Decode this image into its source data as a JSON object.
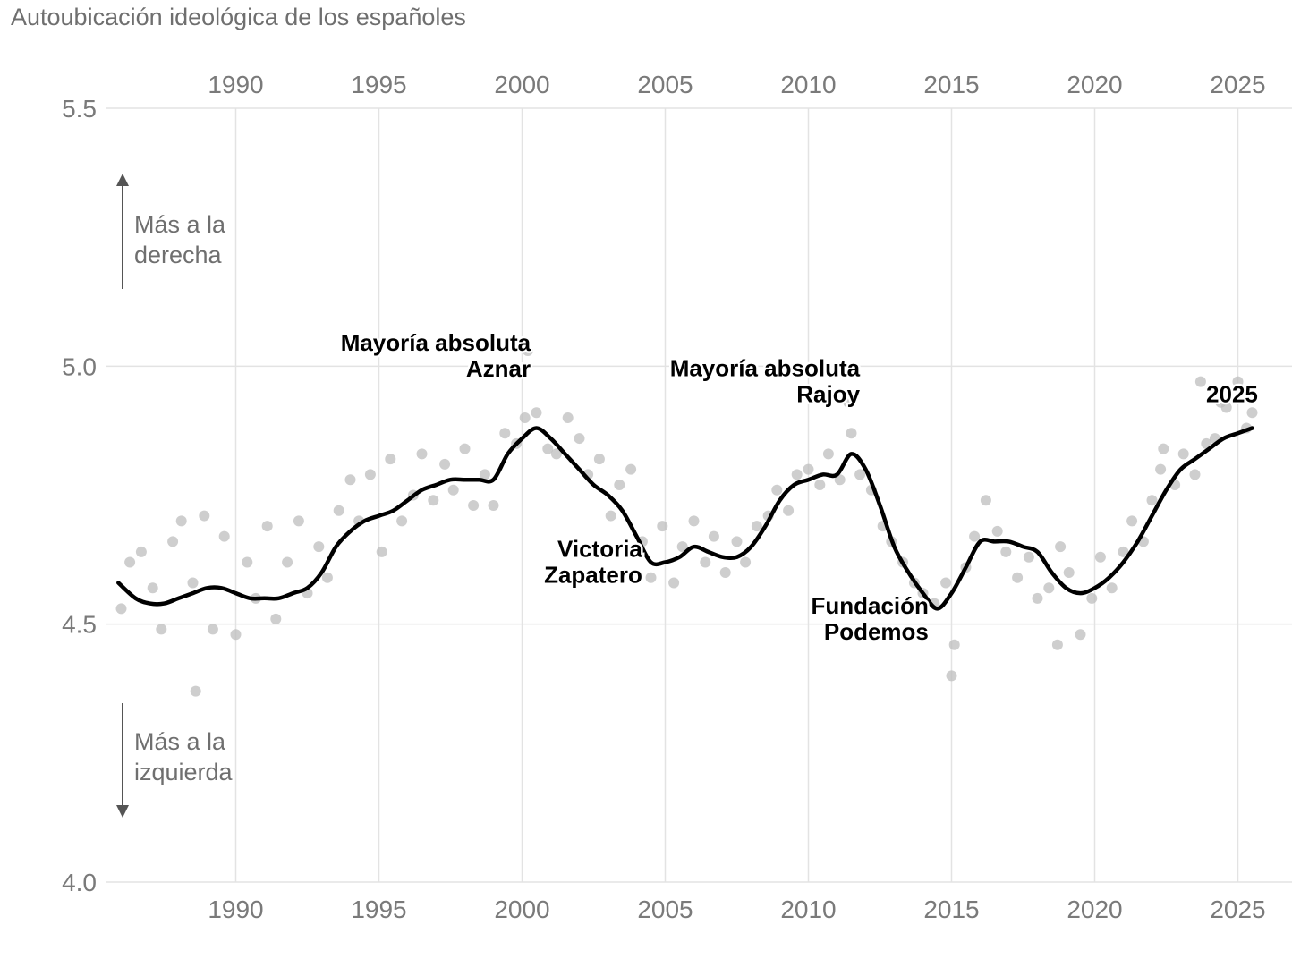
{
  "chart_data": {
    "type": "scatter",
    "title": "Autoubicación ideológica de los españoles",
    "xlim": [
      1985.8,
      2026.6
    ],
    "ylim": [
      4.0,
      5.5
    ],
    "x_ticks": [
      1990,
      1995,
      2000,
      2005,
      2010,
      2015,
      2020,
      2025
    ],
    "x_tick_labels": [
      "1990",
      "1995",
      "2000",
      "2005",
      "2010",
      "2015",
      "2020",
      "2025"
    ],
    "y_ticks": [
      4.0,
      4.5,
      5.0,
      5.5
    ],
    "y_tick_labels": [
      "4.0",
      "4.5",
      "5.0",
      "5.5"
    ],
    "x_axis_position": "top and bottom",
    "grid": true,
    "direction_labels": [
      {
        "lines": [
          "Más a la",
          "derecha"
        ],
        "arrow": "up"
      },
      {
        "lines": [
          "Más a la",
          "izquierda"
        ],
        "arrow": "down"
      }
    ],
    "annotations": [
      {
        "lines": [
          "Mayoría absoluta",
          "Aznar"
        ],
        "x": 2000.3,
        "y": 4.98
      },
      {
        "lines": [
          "Mayoría absoluta",
          "Rajoy"
        ],
        "x": 2011.8,
        "y": 4.93
      },
      {
        "lines": [
          "Victoria",
          "Zapatero"
        ],
        "x": 2004.2,
        "y": 4.58
      },
      {
        "lines": [
          "Fundación",
          "Podemos"
        ],
        "x": 2014.2,
        "y": 4.47
      },
      {
        "lines": [
          "2025"
        ],
        "x": 2025.7,
        "y": 4.93
      }
    ],
    "series": [
      {
        "role": "trend",
        "color": "#000000",
        "x": [
          1985.9,
          1986.5,
          1987.0,
          1987.5,
          1988.0,
          1988.5,
          1989.0,
          1989.5,
          1990.0,
          1990.5,
          1991.0,
          1991.5,
          1992.0,
          1992.5,
          1993.0,
          1993.5,
          1994.0,
          1994.5,
          1995.0,
          1995.5,
          1996.0,
          1996.5,
          1997.0,
          1997.5,
          1998.0,
          1998.5,
          1999.0,
          1999.5,
          2000.0,
          2000.5,
          2001.0,
          2001.5,
          2002.0,
          2002.5,
          2003.0,
          2003.5,
          2004.0,
          2004.5,
          2005.0,
          2005.5,
          2006.0,
          2006.5,
          2007.0,
          2007.5,
          2008.0,
          2008.5,
          2009.0,
          2009.5,
          2010.0,
          2010.5,
          2011.0,
          2011.5,
          2012.0,
          2012.5,
          2013.0,
          2013.5,
          2014.0,
          2014.5,
          2015.0,
          2015.5,
          2016.0,
          2016.5,
          2017.0,
          2017.5,
          2018.0,
          2018.5,
          2019.0,
          2019.5,
          2020.0,
          2020.5,
          2021.0,
          2021.5,
          2022.0,
          2022.5,
          2023.0,
          2023.5,
          2024.0,
          2024.5,
          2025.0,
          2025.5
        ],
        "y": [
          4.58,
          4.55,
          4.54,
          4.54,
          4.55,
          4.56,
          4.57,
          4.57,
          4.56,
          4.55,
          4.55,
          4.55,
          4.56,
          4.57,
          4.6,
          4.65,
          4.68,
          4.7,
          4.71,
          4.72,
          4.74,
          4.76,
          4.77,
          4.78,
          4.78,
          4.78,
          4.78,
          4.83,
          4.86,
          4.88,
          4.86,
          4.83,
          4.8,
          4.77,
          4.75,
          4.72,
          4.67,
          4.62,
          4.62,
          4.63,
          4.65,
          4.64,
          4.63,
          4.63,
          4.65,
          4.69,
          4.74,
          4.77,
          4.78,
          4.79,
          4.79,
          4.83,
          4.8,
          4.73,
          4.65,
          4.6,
          4.56,
          4.53,
          4.56,
          4.61,
          4.66,
          4.66,
          4.66,
          4.65,
          4.64,
          4.6,
          4.57,
          4.56,
          4.57,
          4.59,
          4.62,
          4.66,
          4.71,
          4.76,
          4.8,
          4.82,
          4.84,
          4.86,
          4.87,
          4.88
        ]
      },
      {
        "role": "survey points",
        "color": "#bdbdbd",
        "x": [
          1986.0,
          1986.3,
          1986.7,
          1987.1,
          1987.4,
          1987.8,
          1988.1,
          1988.5,
          1988.9,
          1989.2,
          1989.6,
          1990.0,
          1990.4,
          1990.7,
          1991.1,
          1991.4,
          1991.8,
          1992.2,
          1992.5,
          1992.9,
          1993.2,
          1993.6,
          1994.0,
          1994.3,
          1994.7,
          1995.1,
          1995.4,
          1995.8,
          1996.2,
          1996.5,
          1996.9,
          1997.3,
          1997.6,
          1998.0,
          1998.3,
          1998.7,
          1999.0,
          1999.4,
          1999.8,
          2000.1,
          2000.5,
          2000.9,
          2001.2,
          2001.6,
          2002.0,
          2002.3,
          2002.7,
          2003.1,
          2003.4,
          2003.8,
          2004.2,
          2004.5,
          2004.9,
          2005.3,
          2005.6,
          2006.0,
          2006.4,
          2006.7,
          2007.1,
          2007.5,
          2007.8,
          2008.2,
          2008.6,
          2008.9,
          2009.3,
          2009.6,
          2010.0,
          2010.4,
          2010.7,
          2011.1,
          2011.5,
          2011.8,
          2012.2,
          2012.6,
          2012.9,
          2013.3,
          2013.7,
          2014.0,
          2014.4,
          2014.8,
          2015.1,
          2015.5,
          2015.8,
          2016.2,
          2016.6,
          2016.9,
          2017.3,
          2017.7,
          2018.0,
          2018.4,
          2018.8,
          2019.1,
          2019.5,
          2019.9,
          2020.2,
          2020.6,
          2021.0,
          2021.3,
          2021.7,
          2022.0,
          2022.4,
          2022.8,
          2023.1,
          2023.5,
          2023.9,
          2024.2,
          2024.6,
          2025.0,
          2025.3,
          2025.5,
          2024.4,
          2023.7,
          2022.3,
          2011.4,
          2000.2,
          1988.6,
          2015.0,
          2018.7
        ],
        "y": [
          4.53,
          4.62,
          4.64,
          4.57,
          4.49,
          4.66,
          4.7,
          4.58,
          4.71,
          4.49,
          4.67,
          4.48,
          4.62,
          4.55,
          4.69,
          4.51,
          4.62,
          4.7,
          4.56,
          4.65,
          4.59,
          4.72,
          4.78,
          4.7,
          4.79,
          4.64,
          4.82,
          4.7,
          4.75,
          4.83,
          4.74,
          4.81,
          4.76,
          4.84,
          4.73,
          4.79,
          4.73,
          4.87,
          4.85,
          4.9,
          4.91,
          4.84,
          4.83,
          4.9,
          4.86,
          4.79,
          4.82,
          4.71,
          4.77,
          4.8,
          4.66,
          4.59,
          4.69,
          4.58,
          4.65,
          4.7,
          4.62,
          4.67,
          4.6,
          4.66,
          4.62,
          4.69,
          4.71,
          4.76,
          4.72,
          4.79,
          4.8,
          4.77,
          4.83,
          4.78,
          4.87,
          4.79,
          4.76,
          4.69,
          4.66,
          4.62,
          4.58,
          4.56,
          4.54,
          4.58,
          4.46,
          4.61,
          4.67,
          4.74,
          4.68,
          4.64,
          4.59,
          4.63,
          4.55,
          4.57,
          4.65,
          4.6,
          4.48,
          4.55,
          4.63,
          4.57,
          4.64,
          4.7,
          4.66,
          4.74,
          4.84,
          4.77,
          4.83,
          4.79,
          4.85,
          4.86,
          4.92,
          4.97,
          4.88,
          4.91,
          4.93,
          4.97,
          4.8,
          4.93,
          5.03,
          4.37,
          4.4,
          4.46
        ]
      }
    ]
  }
}
